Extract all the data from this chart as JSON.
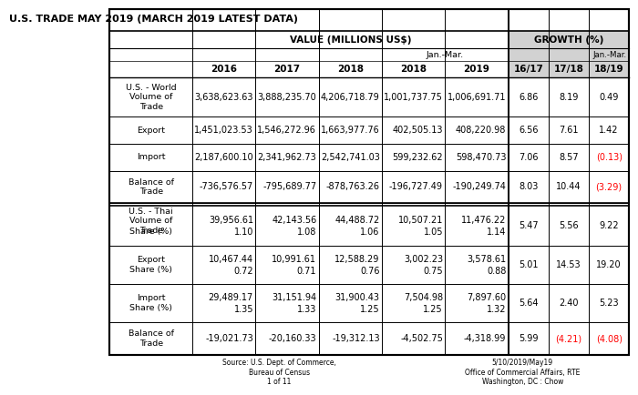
{
  "title": "U.S. TRADE MAY 2019 (MARCH 2019 LATEST DATA)",
  "rows": [
    {
      "label": "U.S. - World\nVolume of\nTrade",
      "sublabel": "",
      "values": [
        "3,638,623.63",
        "3,888,235.70",
        "4,206,718.79",
        "1,001,737.75",
        "1,006,691.71",
        "6.86",
        "8.19",
        "0.49"
      ],
      "red": [
        false,
        false,
        false,
        false,
        false,
        false,
        false,
        false
      ],
      "section": "world"
    },
    {
      "label": "Export",
      "sublabel": "",
      "values": [
        "1,451,023.53",
        "1,546,272.96",
        "1,663,977.76",
        "402,505.13",
        "408,220.98",
        "6.56",
        "7.61",
        "1.42"
      ],
      "red": [
        false,
        false,
        false,
        false,
        false,
        false,
        false,
        false
      ],
      "section": "world"
    },
    {
      "label": "Import",
      "sublabel": "",
      "values": [
        "2,187,600.10",
        "2,341,962.73",
        "2,542,741.03",
        "599,232.62",
        "598,470.73",
        "7.06",
        "8.57",
        "(0.13)"
      ],
      "red": [
        false,
        false,
        false,
        false,
        false,
        false,
        false,
        true
      ],
      "section": "world"
    },
    {
      "label": "Balance of\nTrade",
      "sublabel": "",
      "values": [
        "-736,576.57",
        "-795,689.77",
        "-878,763.26",
        "-196,727.49",
        "-190,249.74",
        "8.03",
        "10.44",
        "(3.29)"
      ],
      "red": [
        false,
        false,
        false,
        false,
        false,
        false,
        false,
        true
      ],
      "section": "world"
    },
    {
      "label": "U.S. - Thai\nVolume of\nTrade",
      "sublabel": "Share (%)",
      "val_line1": [
        "39,956.61",
        "42,143.56",
        "44,488.72",
        "10,507.21",
        "11,476.22"
      ],
      "val_line2": [
        "1.10",
        "1.08",
        "1.06",
        "1.05",
        "1.14"
      ],
      "growth_vals": [
        "5.47",
        "5.56",
        "9.22"
      ],
      "red": [
        false,
        false,
        false,
        false,
        false,
        false,
        false,
        false
      ],
      "section": "thai",
      "two_line_vals": true
    },
    {
      "label": "Export",
      "sublabel": "Share (%)",
      "val_line1": [
        "10,467.44",
        "10,991.61",
        "12,588.29",
        "3,002.23",
        "3,578.61"
      ],
      "val_line2": [
        "0.72",
        "0.71",
        "0.76",
        "0.75",
        "0.88"
      ],
      "growth_vals": [
        "5.01",
        "14.53",
        "19.20"
      ],
      "red": [
        false,
        false,
        false,
        false,
        false,
        false,
        false,
        false
      ],
      "section": "thai",
      "two_line_vals": true
    },
    {
      "label": "Import",
      "sublabel": "Share (%)",
      "val_line1": [
        "29,489.17",
        "31,151.94",
        "31,900.43",
        "7,504.98",
        "7,897.60"
      ],
      "val_line2": [
        "1.35",
        "1.33",
        "1.25",
        "1.25",
        "1.32"
      ],
      "growth_vals": [
        "5.64",
        "2.40",
        "5.23"
      ],
      "red": [
        false,
        false,
        false,
        false,
        false,
        false,
        false,
        false
      ],
      "section": "thai",
      "two_line_vals": true
    },
    {
      "label": "Balance of\nTrade",
      "sublabel": "",
      "values": [
        "-19,021.73",
        "-20,160.33",
        "-19,312.13",
        "-4,502.75",
        "-4,318.99",
        "5.99",
        "(4.21)",
        "(4.08)"
      ],
      "red": [
        false,
        false,
        false,
        false,
        false,
        false,
        true,
        true
      ],
      "section": "thai",
      "two_line_vals": false
    }
  ],
  "footer_left": "Source: U.S. Dept. of Commerce,\nBureau of Census\n1 of 11",
  "footer_right": "5/10/2019/May19\nOffice of Commercial Affairs, RTE\nWashington, DC : Chow"
}
